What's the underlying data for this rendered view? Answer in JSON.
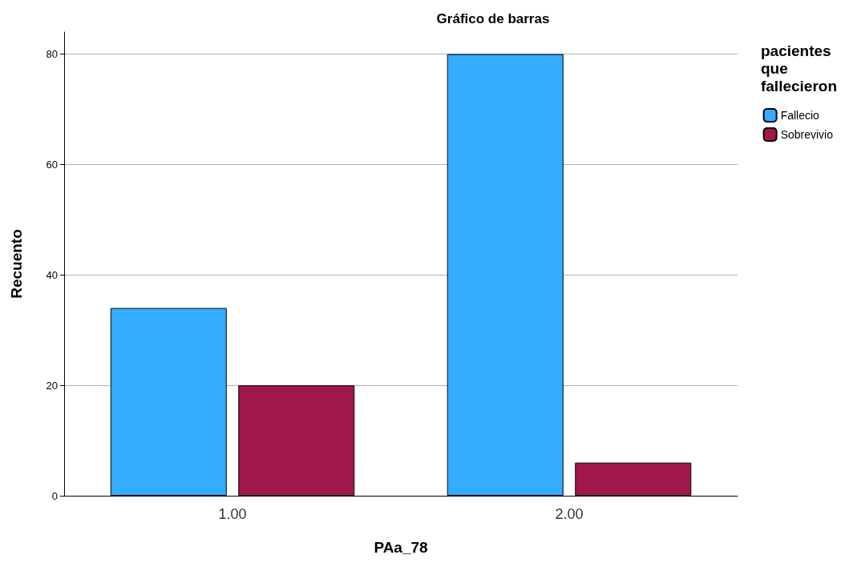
{
  "chart_data": {
    "type": "bar",
    "title": "Gráfico de barras",
    "xlabel": "PAa_78",
    "ylabel": "Recuento",
    "legend_title": "pacientes que fallecieron",
    "categories": [
      "1.00",
      "2.00"
    ],
    "series": [
      {
        "name": "Fallecio",
        "color": "#33adff",
        "values": [
          34,
          80
        ]
      },
      {
        "name": "Sobrevivio",
        "color": "#a0184b",
        "values": [
          20,
          6
        ]
      }
    ],
    "ylim": [
      0,
      84
    ],
    "yticks": [
      0,
      20,
      40,
      60,
      80
    ],
    "grid": "y",
    "legend": "right"
  }
}
